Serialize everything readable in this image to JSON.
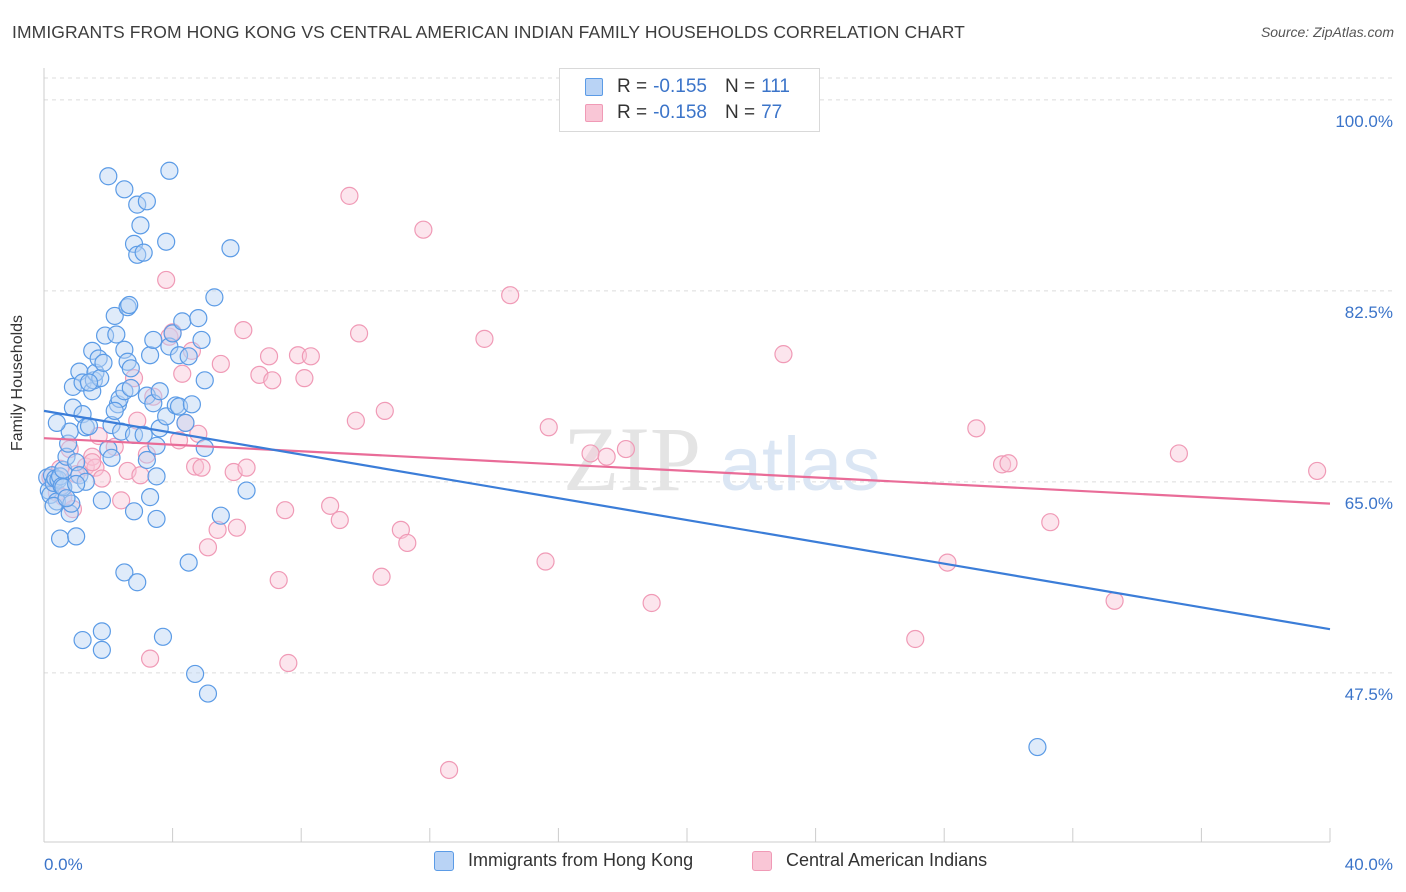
{
  "header": {
    "title": "IMMIGRANTS FROM HONG KONG VS CENTRAL AMERICAN INDIAN FAMILY HOUSEHOLDS CORRELATION CHART",
    "source": "Source: ZipAtlas.com"
  },
  "watermark": {
    "zip": "ZIP",
    "atlas": "atlas"
  },
  "legend": {
    "rows": [
      {
        "r_label": "R =",
        "r_value": "-0.155",
        "n_label": "N =",
        "n_value": "111",
        "color": "#5b9be6"
      },
      {
        "r_label": "R =",
        "r_value": "-0.158",
        "n_label": "N =",
        "n_value": "77",
        "color": "#f09ab6"
      }
    ]
  },
  "colors": {
    "blue_fill": "#b9d3f5",
    "blue_stroke": "#5b9be6",
    "blue_line": "#3b7dd8",
    "pink_fill": "#f9c6d6",
    "pink_stroke": "#f09ab6",
    "pink_line": "#e96c98",
    "axis_text": "#3b74c9",
    "grid": "#dcdcdc"
  },
  "chart_data": {
    "type": "scatter",
    "title": "IMMIGRANTS FROM HONG KONG VS CENTRAL AMERICAN INDIAN FAMILY HOUSEHOLDS CORRELATION CHART",
    "xlabel": "",
    "ylabel": "Family Households",
    "xlim": [
      0,
      40
    ],
    "ylim": [
      32,
      102
    ],
    "x_tick_labels": [
      "0.0%",
      "40.0%"
    ],
    "y_ticks": [
      {
        "value": 100,
        "label": "100.0%"
      },
      {
        "value": 82.5,
        "label": "82.5%"
      },
      {
        "value": 65,
        "label": "65.0%"
      },
      {
        "value": 47.5,
        "label": "47.5%"
      }
    ],
    "series": [
      {
        "name": "Immigrants from Hong Kong",
        "color": "#5b9be6",
        "trend": {
          "x": [
            0,
            40
          ],
          "y": [
            71.5,
            51.5
          ]
        },
        "points": [
          [
            0.1,
            65.4
          ],
          [
            0.15,
            64.2
          ],
          [
            0.2,
            63.8
          ],
          [
            0.25,
            65.6
          ],
          [
            0.3,
            64.9
          ],
          [
            0.35,
            65.3
          ],
          [
            0.4,
            63.2
          ],
          [
            0.45,
            65.2
          ],
          [
            0.5,
            65.5
          ],
          [
            0.3,
            62.8
          ],
          [
            0.55,
            64.6
          ],
          [
            0.6,
            64.5
          ],
          [
            0.6,
            66.1
          ],
          [
            0.7,
            67.3
          ],
          [
            0.75,
            68.5
          ],
          [
            0.8,
            69.6
          ],
          [
            0.4,
            70.4
          ],
          [
            0.5,
            59.8
          ],
          [
            0.8,
            62.1
          ],
          [
            0.85,
            63.0
          ],
          [
            0.9,
            71.8
          ],
          [
            0.9,
            73.7
          ],
          [
            1.0,
            66.8
          ],
          [
            1.0,
            60.0
          ],
          [
            1.1,
            75.1
          ],
          [
            1.1,
            65.6
          ],
          [
            1.2,
            74.1
          ],
          [
            1.2,
            71.2
          ],
          [
            1.3,
            70.0
          ],
          [
            1.3,
            65.0
          ],
          [
            1.4,
            70.1
          ],
          [
            1.5,
            77.0
          ],
          [
            1.5,
            73.3
          ],
          [
            1.55,
            74.3
          ],
          [
            1.6,
            75.0
          ],
          [
            1.7,
            76.3
          ],
          [
            1.75,
            74.5
          ],
          [
            1.8,
            63.3
          ],
          [
            1.8,
            51.3
          ],
          [
            1.85,
            75.9
          ],
          [
            1.9,
            78.4
          ],
          [
            2.0,
            68.0
          ],
          [
            2.1,
            67.2
          ],
          [
            2.1,
            70.2
          ],
          [
            2.2,
            80.2
          ],
          [
            2.25,
            78.5
          ],
          [
            2.3,
            72.1
          ],
          [
            2.35,
            72.6
          ],
          [
            2.4,
            69.6
          ],
          [
            2.5,
            56.7
          ],
          [
            2.5,
            73.3
          ],
          [
            2.5,
            77.1
          ],
          [
            2.6,
            76.0
          ],
          [
            2.6,
            81.0
          ],
          [
            2.65,
            81.2
          ],
          [
            2.7,
            75.4
          ],
          [
            2.8,
            69.3
          ],
          [
            2.8,
            62.3
          ],
          [
            2.9,
            55.8
          ],
          [
            2.8,
            86.8
          ],
          [
            2.9,
            85.8
          ],
          [
            3.0,
            88.5
          ],
          [
            3.1,
            86.0
          ],
          [
            3.1,
            69.3
          ],
          [
            3.2,
            72.9
          ],
          [
            3.2,
            67.0
          ],
          [
            3.3,
            76.6
          ],
          [
            3.3,
            63.6
          ],
          [
            3.4,
            78.0
          ],
          [
            3.4,
            72.2
          ],
          [
            3.5,
            65.5
          ],
          [
            3.5,
            61.6
          ],
          [
            3.6,
            73.3
          ],
          [
            3.6,
            69.9
          ],
          [
            3.7,
            50.8
          ],
          [
            3.8,
            87.0
          ],
          [
            3.8,
            71.0
          ],
          [
            3.9,
            77.4
          ],
          [
            4.0,
            78.6
          ],
          [
            4.1,
            72.0
          ],
          [
            4.2,
            71.9
          ],
          [
            4.2,
            76.6
          ],
          [
            4.3,
            79.7
          ],
          [
            4.4,
            70.4
          ],
          [
            4.5,
            76.5
          ],
          [
            4.5,
            57.6
          ],
          [
            4.6,
            72.1
          ],
          [
            4.7,
            47.4
          ],
          [
            4.8,
            80.0
          ],
          [
            4.9,
            78.0
          ],
          [
            5.0,
            74.3
          ],
          [
            5.0,
            68.1
          ],
          [
            5.1,
            45.6
          ],
          [
            5.3,
            81.9
          ],
          [
            5.5,
            61.9
          ],
          [
            5.8,
            86.4
          ],
          [
            6.3,
            64.2
          ],
          [
            2.0,
            93.0
          ],
          [
            2.5,
            91.8
          ],
          [
            2.9,
            90.4
          ],
          [
            3.2,
            90.7
          ],
          [
            3.9,
            93.5
          ],
          [
            1.2,
            50.5
          ],
          [
            1.8,
            49.6
          ],
          [
            1.4,
            74.1
          ],
          [
            2.7,
            73.6
          ],
          [
            2.2,
            71.5
          ],
          [
            3.5,
            68.3
          ],
          [
            1.0,
            64.8
          ],
          [
            0.7,
            63.5
          ],
          [
            30.9,
            40.7
          ]
        ]
      },
      {
        "name": "Central American Indians",
        "color": "#f09ab6",
        "trend": {
          "x": [
            0,
            40
          ],
          "y": [
            69.0,
            63.0
          ]
        },
        "points": [
          [
            0.2,
            65.4
          ],
          [
            0.4,
            64.0
          ],
          [
            0.5,
            66.2
          ],
          [
            0.6,
            63.6
          ],
          [
            0.8,
            68.0
          ],
          [
            1.0,
            65.7
          ],
          [
            1.3,
            66.4
          ],
          [
            1.5,
            67.3
          ],
          [
            1.6,
            66.3
          ],
          [
            1.7,
            69.2
          ],
          [
            1.8,
            65.3
          ],
          [
            2.2,
            68.2
          ],
          [
            2.4,
            63.3
          ],
          [
            2.6,
            66.0
          ],
          [
            2.8,
            74.5
          ],
          [
            2.9,
            70.6
          ],
          [
            3.0,
            65.6
          ],
          [
            3.2,
            67.5
          ],
          [
            3.3,
            48.8
          ],
          [
            3.4,
            72.8
          ],
          [
            3.8,
            83.5
          ],
          [
            3.9,
            78.3
          ],
          [
            4.0,
            78.7
          ],
          [
            4.2,
            68.8
          ],
          [
            4.3,
            74.9
          ],
          [
            4.4,
            70.4
          ],
          [
            4.6,
            77.0
          ],
          [
            4.7,
            66.4
          ],
          [
            4.8,
            69.4
          ],
          [
            4.9,
            66.3
          ],
          [
            5.1,
            59.0
          ],
          [
            5.4,
            60.6
          ],
          [
            5.5,
            75.8
          ],
          [
            5.9,
            65.9
          ],
          [
            6.0,
            60.8
          ],
          [
            6.2,
            78.9
          ],
          [
            6.3,
            66.3
          ],
          [
            6.7,
            74.8
          ],
          [
            7.0,
            76.5
          ],
          [
            7.1,
            74.3
          ],
          [
            7.3,
            56.0
          ],
          [
            7.5,
            62.4
          ],
          [
            7.6,
            48.4
          ],
          [
            7.9,
            76.6
          ],
          [
            8.1,
            74.5
          ],
          [
            8.3,
            76.5
          ],
          [
            8.9,
            62.8
          ],
          [
            9.2,
            61.5
          ],
          [
            9.5,
            91.2
          ],
          [
            9.7,
            70.6
          ],
          [
            9.8,
            78.6
          ],
          [
            10.5,
            56.3
          ],
          [
            10.6,
            71.5
          ],
          [
            11.1,
            60.6
          ],
          [
            11.3,
            59.4
          ],
          [
            11.8,
            88.1
          ],
          [
            12.6,
            38.6
          ],
          [
            13.7,
            78.1
          ],
          [
            14.5,
            82.1
          ],
          [
            15.6,
            57.7
          ],
          [
            15.7,
            70.0
          ],
          [
            17.0,
            67.6
          ],
          [
            17.5,
            67.3
          ],
          [
            18.1,
            68.0
          ],
          [
            18.9,
            53.9
          ],
          [
            23.0,
            76.7
          ],
          [
            27.1,
            50.6
          ],
          [
            28.1,
            57.6
          ],
          [
            29.0,
            69.9
          ],
          [
            29.8,
            66.6
          ],
          [
            30.0,
            66.7
          ],
          [
            31.3,
            61.3
          ],
          [
            33.3,
            54.1
          ],
          [
            35.3,
            67.6
          ],
          [
            39.6,
            66.0
          ],
          [
            1.5,
            66.8
          ],
          [
            0.9,
            62.5
          ]
        ]
      }
    ]
  },
  "bottom_legend": {
    "items": [
      {
        "label": "Immigrants from Hong Kong",
        "color": "#5b9be6"
      },
      {
        "label": "Central American Indians",
        "color": "#f09ab6"
      }
    ]
  }
}
